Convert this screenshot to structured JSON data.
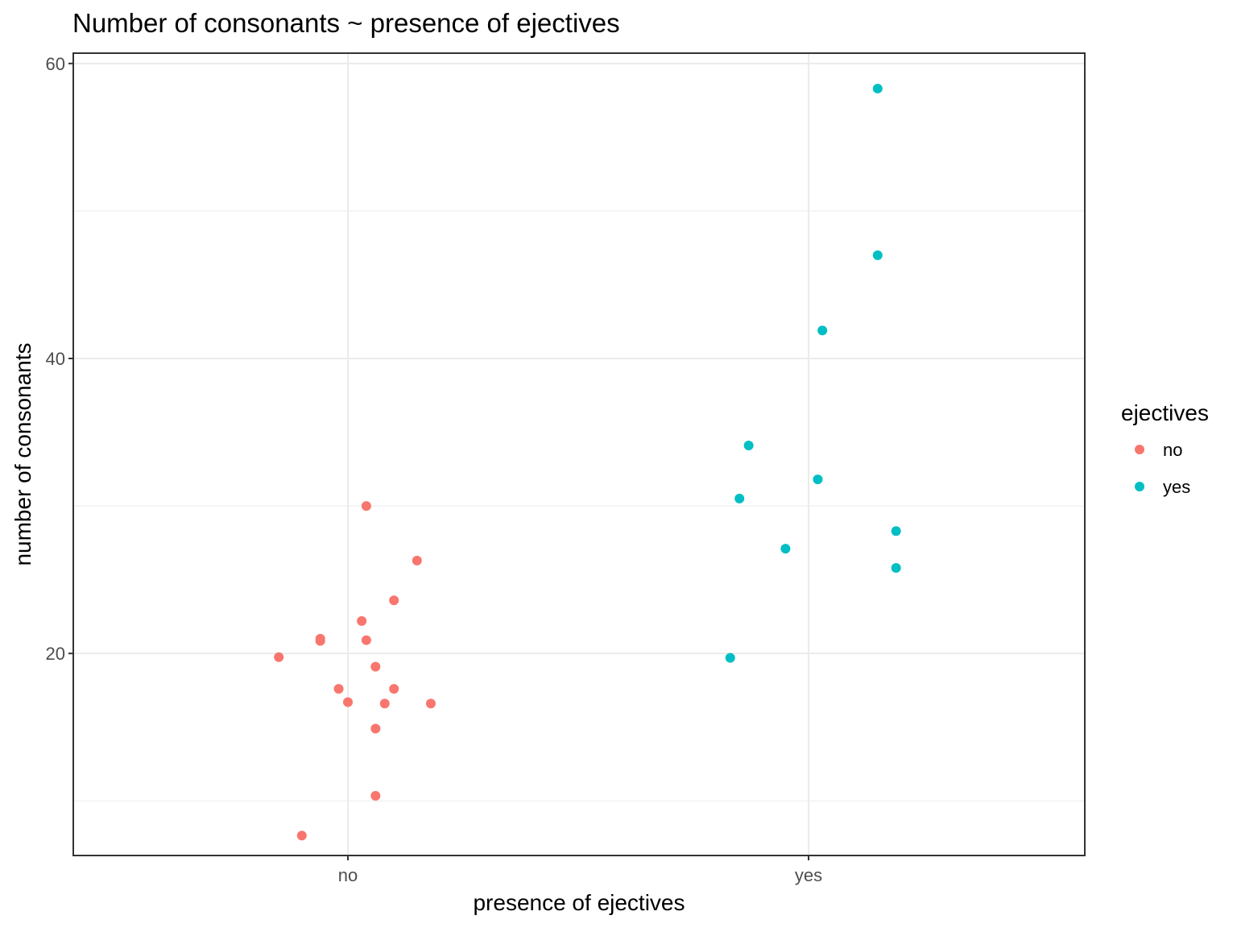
{
  "chart_data": {
    "type": "scatter",
    "title": "Number of consonants ~ presence of ejectives",
    "xlabel": "presence of ejectives",
    "ylabel": "number of consonants",
    "categories": [
      "no",
      "yes"
    ],
    "y_ticks": [
      20,
      40,
      60
    ],
    "ylim": [
      6.3,
      60.7
    ],
    "grid": true,
    "legend": {
      "title": "ejectives",
      "position": "right",
      "entries": [
        "no",
        "yes"
      ]
    },
    "series": [
      {
        "name": "no",
        "color": "#F8766D",
        "points": [
          {
            "x": 0.04,
            "y": 30.0
          },
          {
            "x": 0.15,
            "y": 26.3
          },
          {
            "x": 0.1,
            "y": 23.6
          },
          {
            "x": 0.03,
            "y": 22.2
          },
          {
            "x": -0.06,
            "y": 21.0
          },
          {
            "x": -0.06,
            "y": 20.85
          },
          {
            "x": 0.04,
            "y": 20.9
          },
          {
            "x": -0.15,
            "y": 19.75
          },
          {
            "x": 0.06,
            "y": 19.1
          },
          {
            "x": -0.02,
            "y": 17.6
          },
          {
            "x": 0.1,
            "y": 17.6
          },
          {
            "x": 0.0,
            "y": 16.7
          },
          {
            "x": 0.08,
            "y": 16.6
          },
          {
            "x": 0.18,
            "y": 16.6
          },
          {
            "x": 0.06,
            "y": 14.9
          },
          {
            "x": 0.06,
            "y": 10.35
          },
          {
            "x": -0.1,
            "y": 7.65
          }
        ]
      },
      {
        "name": "yes",
        "color": "#00BFC4",
        "points": [
          {
            "x": 0.15,
            "y": 58.3
          },
          {
            "x": 0.15,
            "y": 47.0
          },
          {
            "x": 0.03,
            "y": 41.9
          },
          {
            "x": -0.13,
            "y": 34.1
          },
          {
            "x": 0.02,
            "y": 31.8
          },
          {
            "x": -0.15,
            "y": 30.5
          },
          {
            "x": 0.19,
            "y": 28.3
          },
          {
            "x": -0.05,
            "y": 27.1
          },
          {
            "x": 0.19,
            "y": 25.8
          },
          {
            "x": -0.17,
            "y": 19.7
          }
        ]
      }
    ]
  }
}
